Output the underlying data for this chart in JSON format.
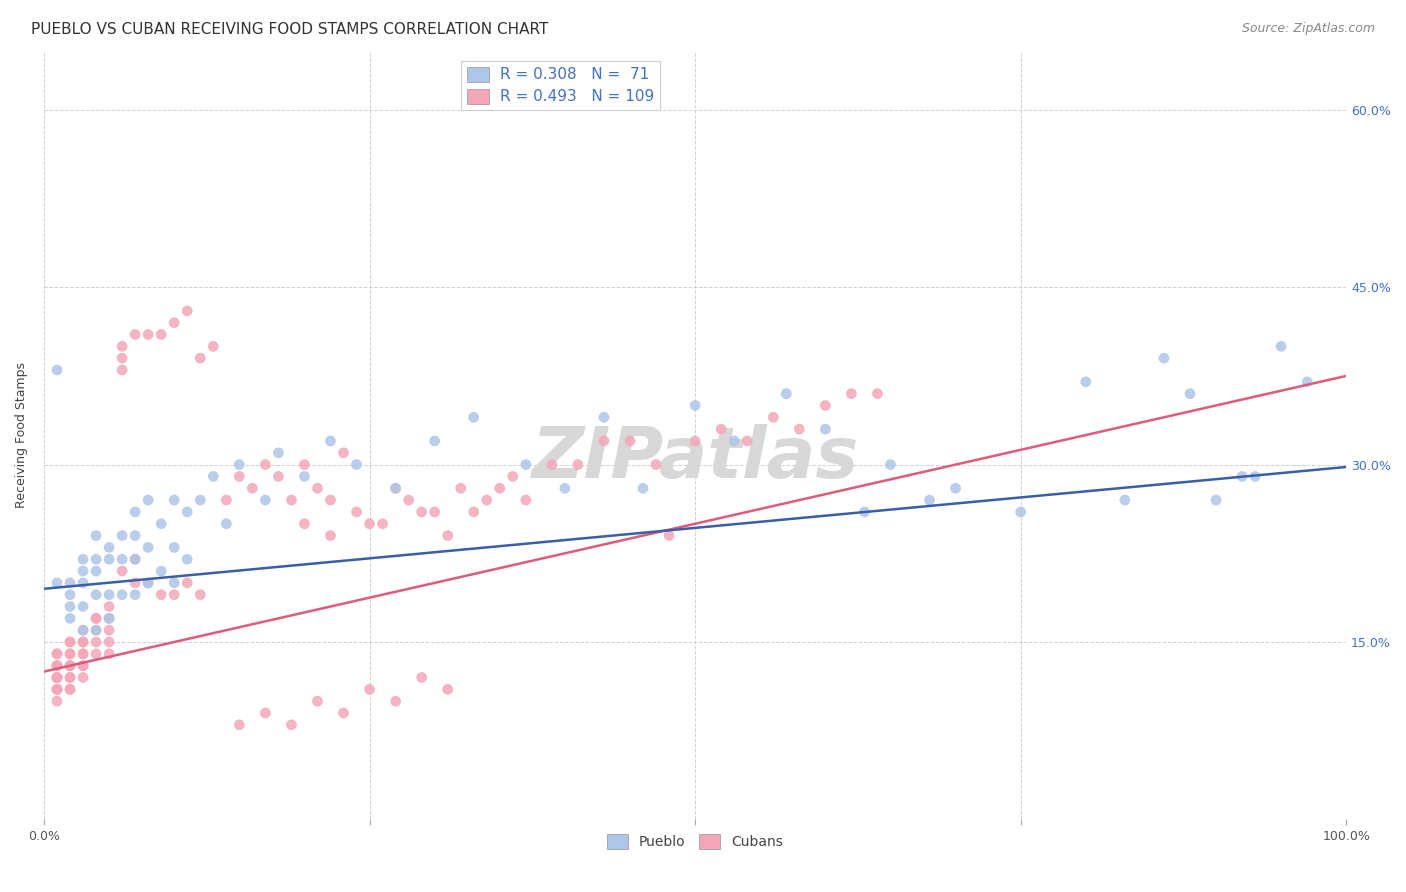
{
  "title": "PUEBLO VS CUBAN RECEIVING FOOD STAMPS CORRELATION CHART",
  "source": "Source: ZipAtlas.com",
  "ylabel": "Receiving Food Stamps",
  "xlim": [
    0.0,
    1.0
  ],
  "ylim": [
    0.0,
    0.65
  ],
  "ytick_labels_right": [
    "60.0%",
    "45.0%",
    "30.0%",
    "15.0%"
  ],
  "ytick_vals_right": [
    0.6,
    0.45,
    0.3,
    0.15
  ],
  "pueblo_R": 0.308,
  "pueblo_N": 71,
  "cuban_R": 0.493,
  "cuban_N": 109,
  "pueblo_color": "#aec6e8",
  "cuban_color": "#f4a7b9",
  "pueblo_line_color": "#3a5fa8",
  "cuban_line_color": "#e05a7a",
  "legend_text_color": "#4472c4",
  "background_color": "#ffffff",
  "grid_color": "#cccccc",
  "watermark_text": "ZIPatlas",
  "watermark_color": "#d8d8d8",
  "title_fontsize": 11,
  "source_fontsize": 9,
  "legend_fontsize": 10,
  "axis_label_fontsize": 9,
  "pueblo_line_x": [
    0.0,
    1.0
  ],
  "pueblo_line_y": [
    0.195,
    0.298
  ],
  "cuban_line_x": [
    0.0,
    1.0
  ],
  "cuban_line_y": [
    0.125,
    0.375
  ],
  "pueblo_x": [
    0.01,
    0.01,
    0.02,
    0.02,
    0.02,
    0.02,
    0.03,
    0.03,
    0.03,
    0.03,
    0.03,
    0.04,
    0.04,
    0.04,
    0.04,
    0.04,
    0.05,
    0.05,
    0.05,
    0.05,
    0.06,
    0.06,
    0.06,
    0.07,
    0.07,
    0.07,
    0.07,
    0.08,
    0.08,
    0.08,
    0.09,
    0.09,
    0.1,
    0.1,
    0.1,
    0.11,
    0.11,
    0.12,
    0.13,
    0.14,
    0.15,
    0.17,
    0.18,
    0.2,
    0.22,
    0.24,
    0.27,
    0.3,
    0.33,
    0.37,
    0.4,
    0.43,
    0.46,
    0.5,
    0.53,
    0.57,
    0.6,
    0.63,
    0.65,
    0.68,
    0.7,
    0.75,
    0.8,
    0.83,
    0.86,
    0.88,
    0.9,
    0.92,
    0.93,
    0.95,
    0.97
  ],
  "pueblo_y": [
    0.2,
    0.38,
    0.2,
    0.19,
    0.18,
    0.17,
    0.22,
    0.21,
    0.2,
    0.18,
    0.16,
    0.24,
    0.22,
    0.21,
    0.19,
    0.16,
    0.23,
    0.22,
    0.19,
    0.17,
    0.24,
    0.22,
    0.19,
    0.26,
    0.24,
    0.22,
    0.19,
    0.27,
    0.23,
    0.2,
    0.25,
    0.21,
    0.27,
    0.23,
    0.2,
    0.26,
    0.22,
    0.27,
    0.29,
    0.25,
    0.3,
    0.27,
    0.31,
    0.29,
    0.32,
    0.3,
    0.28,
    0.32,
    0.34,
    0.3,
    0.28,
    0.34,
    0.28,
    0.35,
    0.32,
    0.36,
    0.33,
    0.26,
    0.3,
    0.27,
    0.28,
    0.26,
    0.37,
    0.27,
    0.39,
    0.36,
    0.27,
    0.29,
    0.29,
    0.4,
    0.37
  ],
  "cuban_x": [
    0.01,
    0.01,
    0.01,
    0.01,
    0.01,
    0.01,
    0.01,
    0.01,
    0.01,
    0.01,
    0.01,
    0.01,
    0.01,
    0.02,
    0.02,
    0.02,
    0.02,
    0.02,
    0.02,
    0.02,
    0.02,
    0.02,
    0.02,
    0.02,
    0.03,
    0.03,
    0.03,
    0.03,
    0.03,
    0.03,
    0.03,
    0.03,
    0.04,
    0.04,
    0.04,
    0.04,
    0.04,
    0.05,
    0.05,
    0.05,
    0.05,
    0.05,
    0.06,
    0.06,
    0.06,
    0.06,
    0.07,
    0.07,
    0.07,
    0.08,
    0.08,
    0.09,
    0.09,
    0.1,
    0.1,
    0.11,
    0.11,
    0.12,
    0.12,
    0.13,
    0.14,
    0.15,
    0.16,
    0.17,
    0.18,
    0.19,
    0.2,
    0.21,
    0.22,
    0.23,
    0.25,
    0.27,
    0.29,
    0.31,
    0.33,
    0.35,
    0.37,
    0.39,
    0.41,
    0.43,
    0.45,
    0.47,
    0.48,
    0.5,
    0.52,
    0.54,
    0.56,
    0.58,
    0.6,
    0.62,
    0.64,
    0.2,
    0.22,
    0.24,
    0.26,
    0.28,
    0.3,
    0.32,
    0.34,
    0.36,
    0.15,
    0.17,
    0.19,
    0.21,
    0.23,
    0.25,
    0.27,
    0.29,
    0.31
  ],
  "cuban_y": [
    0.14,
    0.14,
    0.13,
    0.13,
    0.13,
    0.12,
    0.12,
    0.12,
    0.12,
    0.11,
    0.11,
    0.11,
    0.1,
    0.15,
    0.15,
    0.14,
    0.14,
    0.13,
    0.13,
    0.13,
    0.12,
    0.12,
    0.11,
    0.11,
    0.16,
    0.15,
    0.15,
    0.14,
    0.14,
    0.13,
    0.13,
    0.12,
    0.17,
    0.17,
    0.16,
    0.15,
    0.14,
    0.18,
    0.17,
    0.16,
    0.15,
    0.14,
    0.4,
    0.39,
    0.38,
    0.21,
    0.41,
    0.22,
    0.2,
    0.41,
    0.2,
    0.41,
    0.19,
    0.42,
    0.19,
    0.43,
    0.2,
    0.39,
    0.19,
    0.4,
    0.27,
    0.29,
    0.28,
    0.3,
    0.29,
    0.27,
    0.3,
    0.28,
    0.27,
    0.31,
    0.25,
    0.28,
    0.26,
    0.24,
    0.26,
    0.28,
    0.27,
    0.3,
    0.3,
    0.32,
    0.32,
    0.3,
    0.24,
    0.32,
    0.33,
    0.32,
    0.34,
    0.33,
    0.35,
    0.36,
    0.36,
    0.25,
    0.24,
    0.26,
    0.25,
    0.27,
    0.26,
    0.28,
    0.27,
    0.29,
    0.08,
    0.09,
    0.08,
    0.1,
    0.09,
    0.11,
    0.1,
    0.12,
    0.11
  ]
}
